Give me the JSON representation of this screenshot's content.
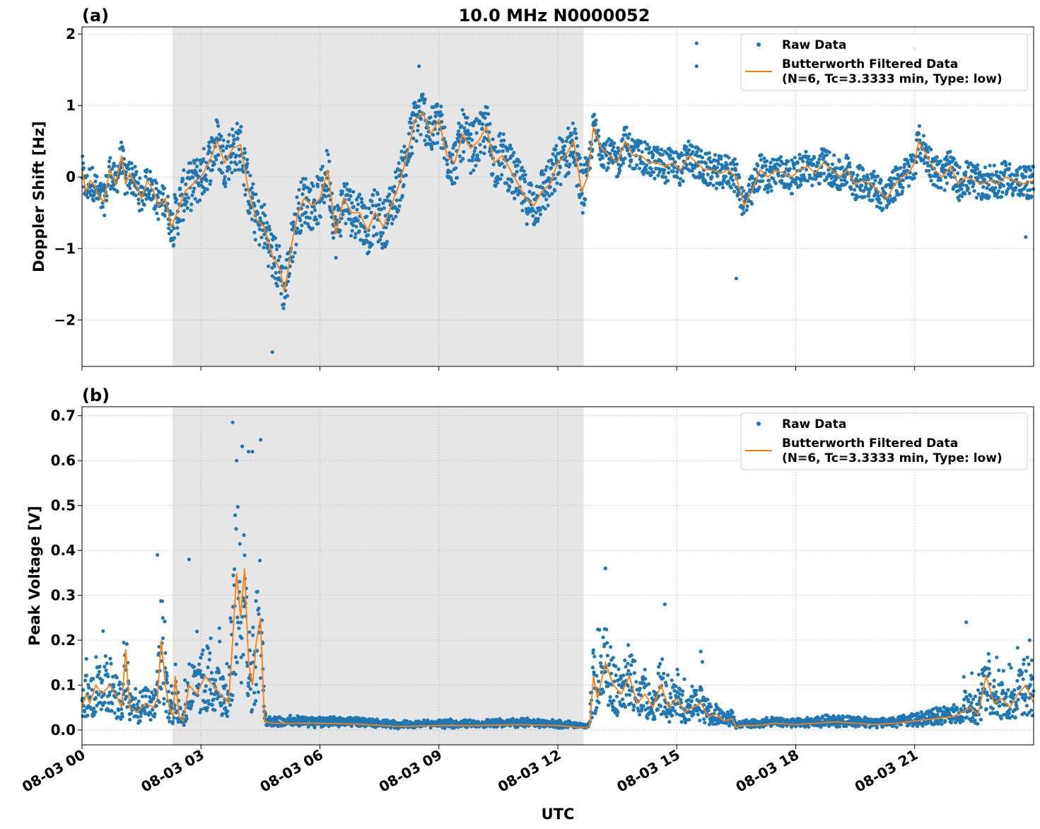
{
  "figure": {
    "title": "10.0 MHz N0000052",
    "xlabel": "UTC"
  },
  "colors": {
    "raw": "#1f77b4",
    "filtered": "#ff7f0e",
    "shade": "#e6e6e6",
    "grid": "#b0b0b0"
  },
  "legend": {
    "raw_label": "Raw Data",
    "filtered_label_line1": "Butterworth Filtered Data",
    "filtered_label_line2": "(N=6, Tc=3.3333 min, Type: low)",
    "placement": "top-right"
  },
  "chart_data": [
    {
      "type": "scatter",
      "panel_label": "(a)",
      "ylabel": "Doppler Shift [Hz]",
      "xlim": [
        "08-03 00:00",
        "08-03 24:00"
      ],
      "ylim": [
        -2.65,
        2.1
      ],
      "yticks": [
        -2,
        -1,
        0,
        1,
        2
      ],
      "ytick_labels": [
        "−2",
        "−1",
        "0",
        "1",
        "2"
      ],
      "xticks": [
        0,
        3,
        6,
        9,
        12,
        15,
        18,
        21
      ],
      "xtick_labels": [
        "08-03 00",
        "08-03 03",
        "08-03 06",
        "08-03 09",
        "08-03 12",
        "08-03 15",
        "08-03 18",
        "08-03 21"
      ],
      "x_units": "hours UTC on 08-03",
      "grid": true,
      "shaded_interval_hours": [
        2.28,
        12.65
      ],
      "series": [
        {
          "name": "Butterworth Filtered Data",
          "style": "line",
          "x": [
            0,
            0.1,
            0.2,
            0.3,
            0.4,
            0.55,
            0.7,
            0.85,
            1.0,
            1.1,
            1.2,
            1.35,
            1.5,
            1.65,
            1.8,
            1.95,
            2.1,
            2.25,
            2.4,
            2.6,
            2.8,
            3.0,
            3.2,
            3.4,
            3.6,
            3.8,
            4.0,
            4.2,
            4.4,
            4.6,
            4.8,
            5.0,
            5.1,
            5.2,
            5.3,
            5.45,
            5.6,
            5.8,
            6.0,
            6.2,
            6.4,
            6.6,
            6.8,
            7.0,
            7.2,
            7.4,
            7.6,
            7.8,
            8.0,
            8.2,
            8.4,
            8.6,
            8.8,
            9.0,
            9.2,
            9.4,
            9.6,
            9.8,
            10.0,
            10.2,
            10.4,
            10.6,
            10.8,
            11.0,
            11.2,
            11.4,
            11.6,
            11.8,
            12.0,
            12.2,
            12.4,
            12.6,
            12.75,
            12.9,
            13.1,
            13.3,
            13.5,
            13.7,
            13.9,
            14.1,
            14.3,
            14.5,
            14.7,
            14.9,
            15.1,
            15.3,
            15.5,
            15.7,
            15.9,
            16.1,
            16.3,
            16.5,
            16.6,
            16.7,
            16.9,
            17.1,
            17.3,
            17.5,
            17.7,
            17.9,
            18.1,
            18.3,
            18.5,
            18.7,
            18.9,
            19.1,
            19.3,
            19.5,
            19.7,
            19.9,
            20.1,
            20.3,
            20.5,
            20.7,
            20.9,
            21.0,
            21.1,
            21.3,
            21.5,
            21.7,
            21.9,
            22.1,
            22.3,
            22.5,
            22.7,
            22.9,
            23.1,
            23.3,
            23.5,
            23.7,
            24.0
          ],
          "y": [
            0.1,
            -0.2,
            -0.05,
            -0.1,
            -0.25,
            -0.35,
            0.1,
            -0.1,
            0.3,
            -0.1,
            0.05,
            -0.1,
            -0.3,
            -0.05,
            -0.2,
            -0.4,
            -0.3,
            -0.7,
            -0.5,
            -0.2,
            -0.1,
            0.0,
            0.2,
            0.5,
            0.2,
            0.4,
            0.45,
            -0.2,
            -0.6,
            -0.7,
            -1.1,
            -1.3,
            -1.6,
            -1.3,
            -0.9,
            -0.5,
            -0.3,
            -0.4,
            -0.3,
            0.1,
            -0.8,
            -0.3,
            -0.5,
            -0.5,
            -0.75,
            -0.5,
            -0.7,
            -0.4,
            -0.1,
            0.3,
            0.8,
            0.9,
            0.6,
            0.8,
            0.3,
            0.2,
            0.6,
            0.4,
            0.5,
            0.7,
            0.2,
            0.3,
            0.1,
            -0.1,
            -0.3,
            -0.4,
            -0.2,
            -0.1,
            0.2,
            0.3,
            0.5,
            -0.2,
            0.0,
            0.7,
            0.4,
            0.3,
            0.2,
            0.5,
            0.3,
            0.3,
            0.2,
            0.2,
            0.15,
            0.2,
            0.1,
            0.3,
            0.2,
            0.1,
            0.1,
            0.05,
            0.1,
            0.0,
            -0.2,
            -0.4,
            -0.2,
            0.1,
            0.0,
            0.1,
            0.05,
            0.0,
            0.1,
            0.15,
            0.05,
            0.2,
            0.1,
            0.0,
            0.1,
            -0.1,
            -0.05,
            -0.1,
            -0.2,
            -0.3,
            -0.1,
            0.0,
            0.1,
            0.2,
            0.5,
            0.3,
            0.1,
            0.0,
            0.15,
            -0.1,
            0.0,
            -0.05,
            -0.1,
            -0.05,
            -0.1,
            0.0,
            -0.05,
            -0.1,
            -0.05
          ]
        },
        {
          "name": "Raw Data",
          "style": "points",
          "spread_around_filtered": 0.28,
          "outliers": [
            [
              15.5,
              1.87
            ],
            [
              15.5,
              1.55
            ],
            [
              21.0,
              1.8
            ],
            [
              16.5,
              -1.42
            ],
            [
              4.8,
              -2.45
            ],
            [
              8.5,
              1.55
            ],
            [
              23.8,
              -0.84
            ]
          ]
        }
      ]
    },
    {
      "type": "scatter",
      "panel_label": "(b)",
      "ylabel": "Peak Voltage [V]",
      "xlim": [
        "08-03 00:00",
        "08-03 24:00"
      ],
      "ylim": [
        -0.033,
        0.72
      ],
      "yticks": [
        0.0,
        0.1,
        0.2,
        0.3,
        0.4,
        0.5,
        0.6,
        0.7
      ],
      "ytick_labels": [
        "0.0",
        "0.1",
        "0.2",
        "0.3",
        "0.4",
        "0.5",
        "0.6",
        "0.7"
      ],
      "xticks": [
        0,
        3,
        6,
        9,
        12,
        15,
        18,
        21
      ],
      "xtick_labels": [
        "08-03 00",
        "08-03 03",
        "08-03 06",
        "08-03 09",
        "08-03 12",
        "08-03 15",
        "08-03 18",
        "08-03 21"
      ],
      "x_units": "hours UTC on 08-03",
      "grid": true,
      "shaded_interval_hours": [
        2.28,
        12.65
      ],
      "series": [
        {
          "name": "Butterworth Filtered Data",
          "style": "line",
          "x": [
            0,
            0.1,
            0.2,
            0.35,
            0.5,
            0.7,
            0.9,
            1.0,
            1.1,
            1.2,
            1.4,
            1.6,
            1.8,
            1.9,
            2.0,
            2.1,
            2.2,
            2.3,
            2.35,
            2.45,
            2.55,
            2.7,
            2.9,
            3.1,
            3.3,
            3.5,
            3.7,
            3.8,
            3.9,
            4.0,
            4.1,
            4.2,
            4.3,
            4.4,
            4.5,
            4.6,
            4.8,
            5.0,
            6.0,
            7.0,
            8.0,
            9.0,
            10.0,
            11.0,
            12.0,
            12.5,
            12.7,
            12.8,
            12.9,
            13.0,
            13.2,
            13.4,
            13.6,
            13.8,
            14.0,
            14.2,
            14.4,
            14.6,
            14.8,
            15.0,
            15.2,
            15.4,
            15.6,
            15.8,
            16.0,
            16.2,
            16.4,
            16.5,
            16.6,
            17.0,
            17.5,
            18.0,
            18.5,
            19.0,
            19.5,
            20.0,
            20.5,
            21.0,
            21.5,
            22.0,
            22.2,
            22.4,
            22.6,
            22.8,
            23.0,
            23.2,
            23.4,
            23.6,
            23.8,
            24.0
          ],
          "y": [
            0.05,
            0.08,
            0.06,
            0.1,
            0.08,
            0.1,
            0.07,
            0.05,
            0.18,
            0.05,
            0.04,
            0.06,
            0.05,
            0.07,
            0.2,
            0.1,
            0.05,
            0.03,
            0.12,
            0.03,
            0.02,
            0.1,
            0.08,
            0.12,
            0.1,
            0.08,
            0.06,
            0.2,
            0.35,
            0.25,
            0.36,
            0.15,
            0.1,
            0.2,
            0.25,
            0.02,
            0.015,
            0.015,
            0.015,
            0.013,
            0.008,
            0.01,
            0.01,
            0.012,
            0.01,
            0.006,
            0.005,
            0.008,
            0.12,
            0.07,
            0.15,
            0.1,
            0.08,
            0.12,
            0.06,
            0.08,
            0.05,
            0.1,
            0.05,
            0.07,
            0.04,
            0.05,
            0.06,
            0.03,
            0.035,
            0.02,
            0.025,
            0.005,
            0.01,
            0.01,
            0.015,
            0.012,
            0.015,
            0.018,
            0.015,
            0.012,
            0.015,
            0.02,
            0.025,
            0.03,
            0.04,
            0.05,
            0.035,
            0.12,
            0.06,
            0.07,
            0.05,
            0.08,
            0.1,
            0.06
          ]
        },
        {
          "name": "Raw Data",
          "style": "points",
          "outliers": [
            [
              3.8,
              0.685
            ],
            [
              3.9,
              0.6
            ],
            [
              4.3,
              0.62
            ],
            [
              4.2,
              0.62
            ],
            [
              1.9,
              0.39
            ],
            [
              2.7,
              0.38
            ],
            [
              13.2,
              0.36
            ],
            [
              14.7,
              0.28
            ],
            [
              22.3,
              0.24
            ],
            [
              23.9,
              0.2
            ]
          ]
        }
      ]
    }
  ]
}
